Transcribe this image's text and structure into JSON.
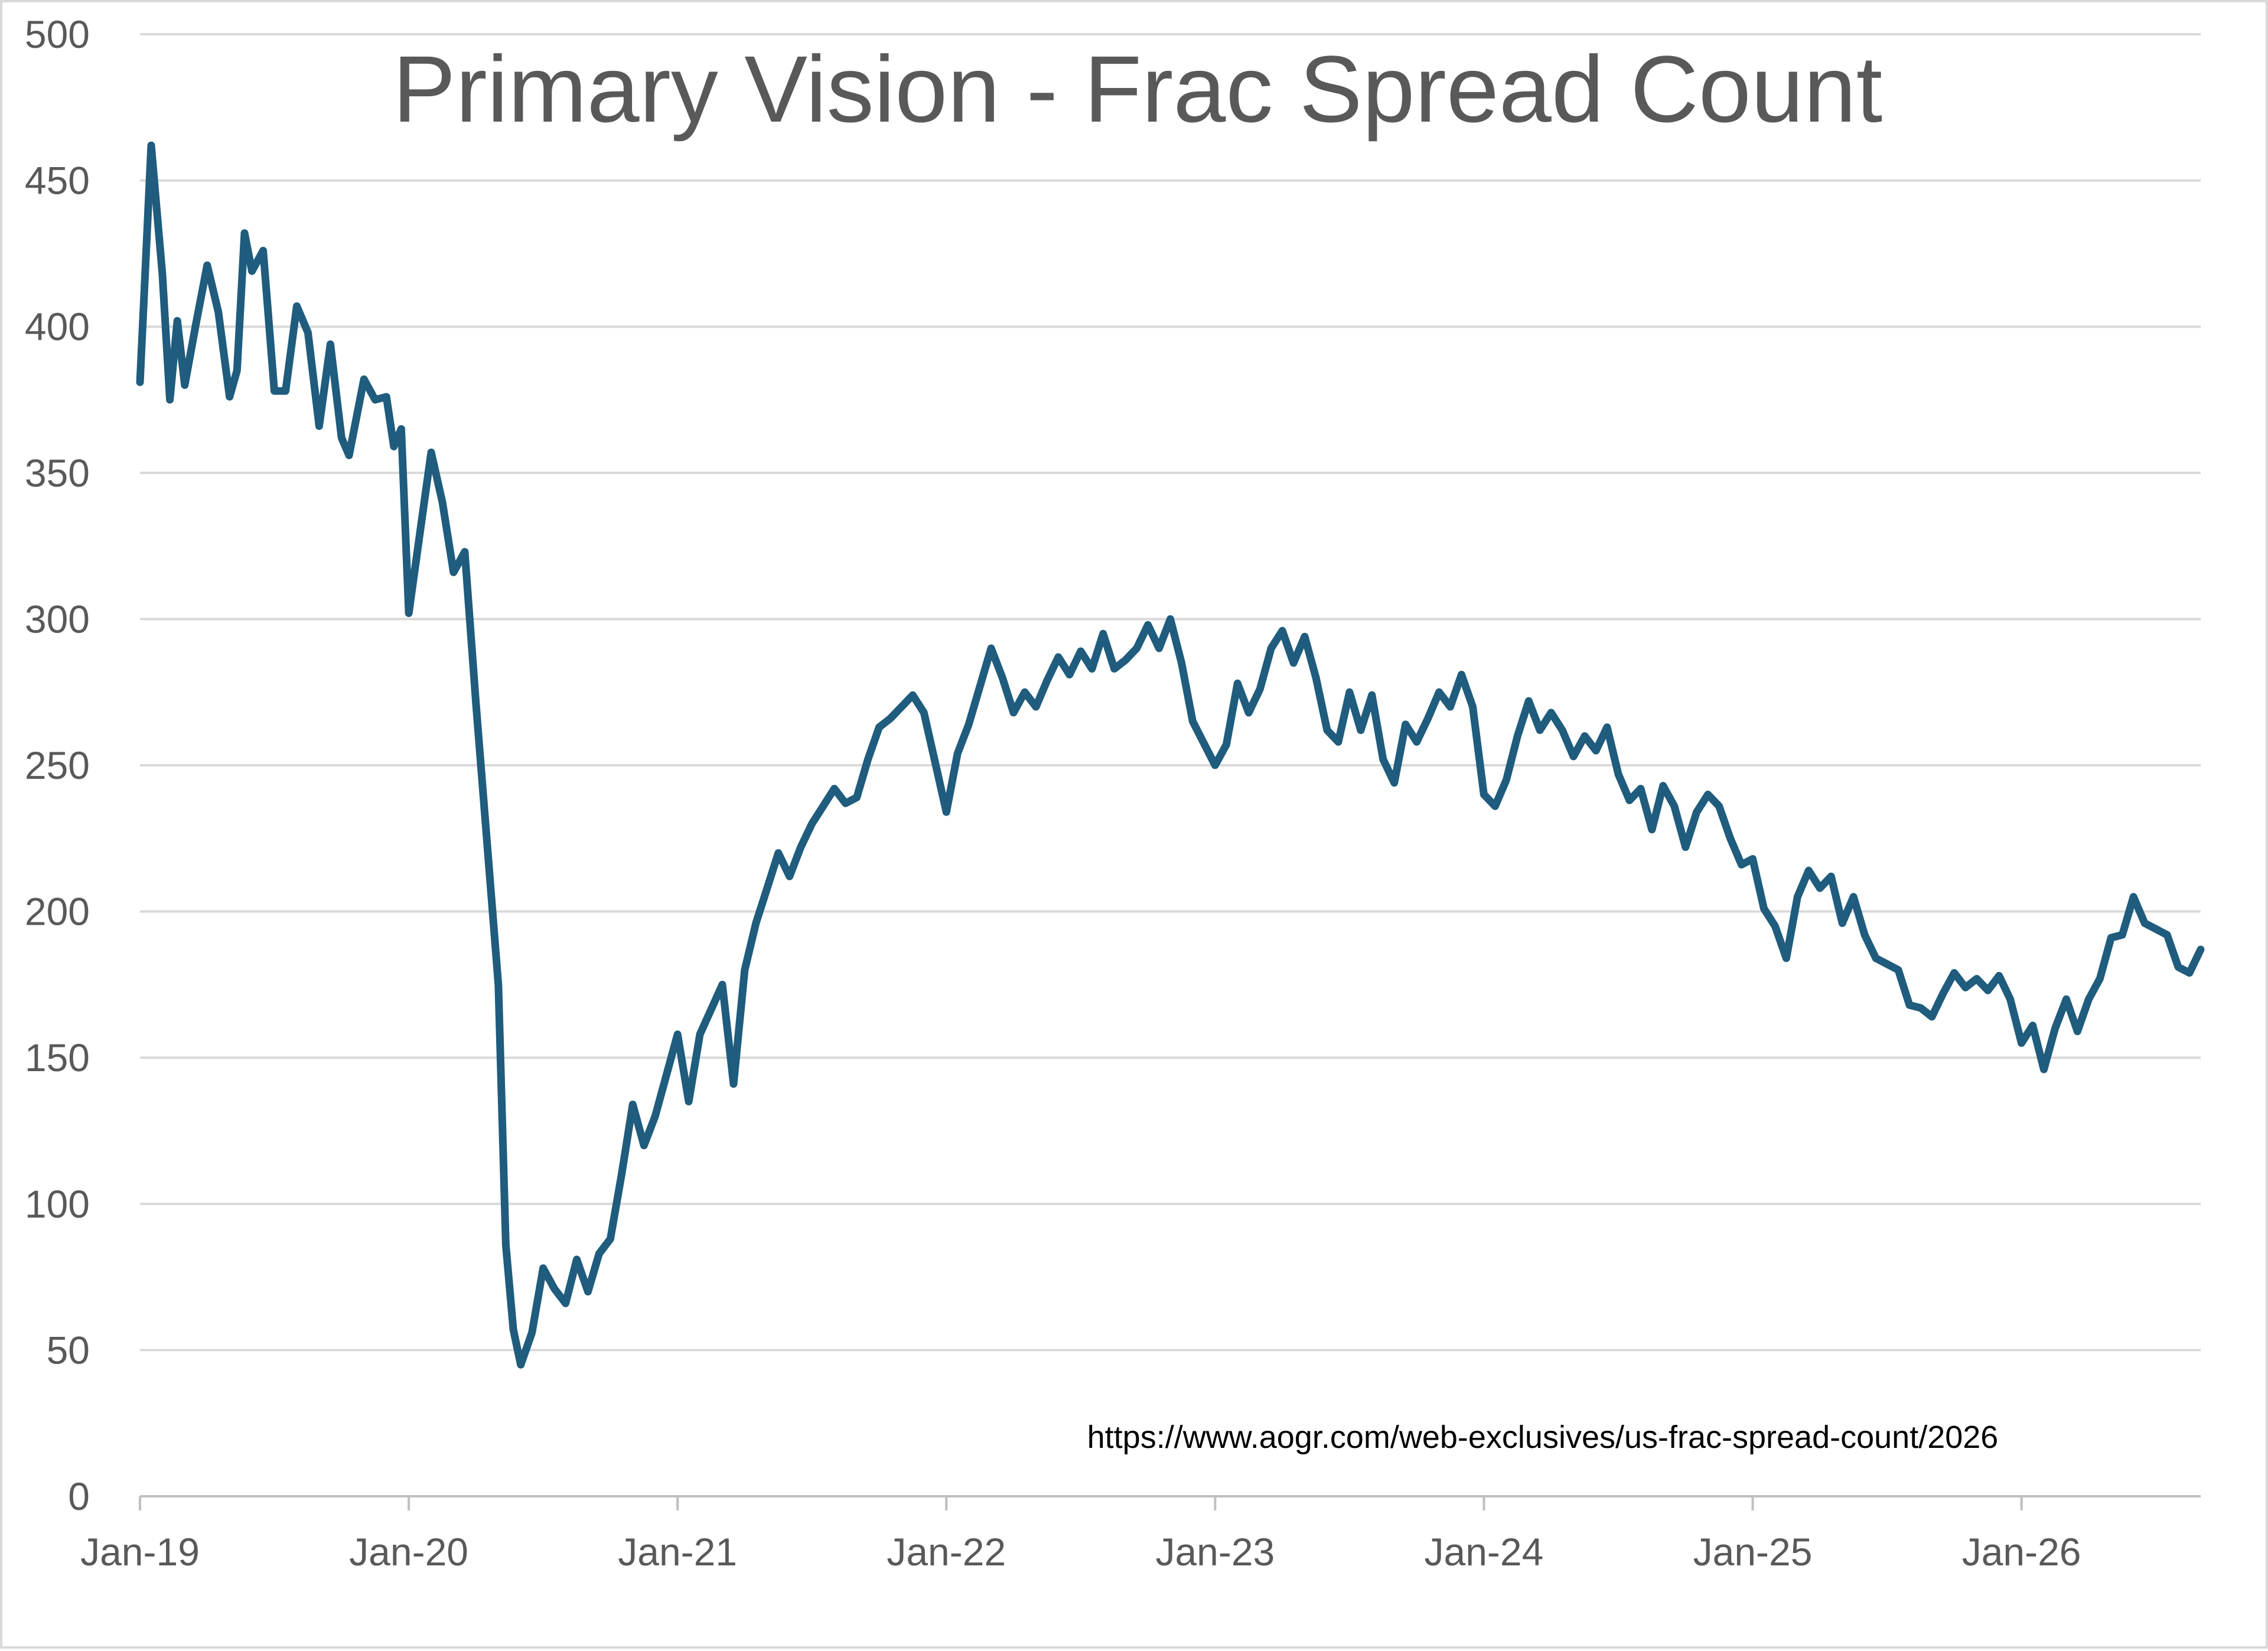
{
  "chart_data": {
    "type": "line",
    "title": "Primary Vision - Frac Spread Count",
    "annotation": "https://www.aogr.com/web-exclusives/us-frac-spread-count/2026",
    "xlabel": "",
    "ylabel": "",
    "ylim": [
      0,
      500
    ],
    "y_ticks": [
      0,
      50,
      100,
      150,
      200,
      250,
      300,
      350,
      400,
      450,
      500
    ],
    "x_range": [
      "2019-01",
      "2026-09"
    ],
    "x_tick_labels": [
      "Jan-19",
      "Jan-20",
      "Jan-21",
      "Jan-22",
      "Jan-23",
      "Jan-24",
      "Jan-25",
      "Jan-26"
    ],
    "grid": true,
    "legend": "none",
    "colors": {
      "line": "#1f5c7d",
      "grid": "#d9d9d9",
      "axis": "#bfbfbf",
      "text": "#595959"
    },
    "series": [
      {
        "color": "#1f5c7d",
        "points": [
          [
            "2019-01",
            381
          ],
          [
            "2019-01",
            462
          ],
          [
            "2019-02",
            418
          ],
          [
            "2019-02",
            375
          ],
          [
            "2019-02",
            402
          ],
          [
            "2019-03",
            380
          ],
          [
            "2019-03",
            401
          ],
          [
            "2019-04",
            421
          ],
          [
            "2019-04",
            405
          ],
          [
            "2019-05",
            376
          ],
          [
            "2019-05",
            385
          ],
          [
            "2019-05",
            432
          ],
          [
            "2019-06",
            419
          ],
          [
            "2019-06",
            426
          ],
          [
            "2019-07",
            378
          ],
          [
            "2019-07",
            378
          ],
          [
            "2019-08",
            407
          ],
          [
            "2019-08",
            398
          ],
          [
            "2019-09",
            366
          ],
          [
            "2019-09",
            394
          ],
          [
            "2019-10",
            362
          ],
          [
            "2019-10",
            356
          ],
          [
            "2019-10",
            369
          ],
          [
            "2019-11",
            382
          ],
          [
            "2019-11",
            375
          ],
          [
            "2019-12",
            376
          ],
          [
            "2019-12",
            359
          ],
          [
            "2019-12",
            365
          ],
          [
            "2020-01",
            302
          ],
          [
            "2020-02",
            357
          ],
          [
            "2020-02",
            340
          ],
          [
            "2020-03",
            316
          ],
          [
            "2020-03",
            323
          ],
          [
            "2020-04",
            271
          ],
          [
            "2020-05",
            175
          ],
          [
            "2020-05",
            86
          ],
          [
            "2020-05",
            57
          ],
          [
            "2020-06",
            45
          ],
          [
            "2020-06",
            56
          ],
          [
            "2020-07",
            78
          ],
          [
            "2020-07",
            71
          ],
          [
            "2020-08",
            66
          ],
          [
            "2020-08",
            81
          ],
          [
            "2020-09",
            70
          ],
          [
            "2020-09",
            83
          ],
          [
            "2020-10",
            88
          ],
          [
            "2020-10",
            110
          ],
          [
            "2020-11",
            134
          ],
          [
            "2020-11",
            120
          ],
          [
            "2020-12",
            130
          ],
          [
            "2021-01",
            158
          ],
          [
            "2021-01",
            135
          ],
          [
            "2021-02",
            158
          ],
          [
            "2021-03",
            175
          ],
          [
            "2021-03",
            141
          ],
          [
            "2021-04",
            180
          ],
          [
            "2021-04",
            196
          ],
          [
            "2021-05",
            208
          ],
          [
            "2021-05",
            220
          ],
          [
            "2021-06",
            212
          ],
          [
            "2021-06",
            222
          ],
          [
            "2021-07",
            230
          ],
          [
            "2021-07",
            236
          ],
          [
            "2021-08",
            242
          ],
          [
            "2021-08",
            237
          ],
          [
            "2021-09",
            239
          ],
          [
            "2021-09",
            252
          ],
          [
            "2021-10",
            263
          ],
          [
            "2021-10",
            266
          ],
          [
            "2021-11",
            270
          ],
          [
            "2021-11",
            274
          ],
          [
            "2021-12",
            268
          ],
          [
            "2022-01",
            234
          ],
          [
            "2022-01",
            254
          ],
          [
            "2022-02",
            264
          ],
          [
            "2022-03",
            290
          ],
          [
            "2022-03",
            280
          ],
          [
            "2022-04",
            268
          ],
          [
            "2022-04",
            275
          ],
          [
            "2022-05",
            270
          ],
          [
            "2022-05",
            279
          ],
          [
            "2022-06",
            287
          ],
          [
            "2022-06",
            281
          ],
          [
            "2022-07",
            289
          ],
          [
            "2022-07",
            283
          ],
          [
            "2022-08",
            295
          ],
          [
            "2022-08",
            283
          ],
          [
            "2022-09",
            286
          ],
          [
            "2022-09",
            290
          ],
          [
            "2022-10",
            298
          ],
          [
            "2022-10",
            290
          ],
          [
            "2022-11",
            300
          ],
          [
            "2022-11",
            285
          ],
          [
            "2022-12",
            265
          ],
          [
            "2023-01",
            250
          ],
          [
            "2023-01",
            257
          ],
          [
            "2023-02",
            278
          ],
          [
            "2023-02",
            268
          ],
          [
            "2023-03",
            276
          ],
          [
            "2023-03",
            290
          ],
          [
            "2023-04",
            296
          ],
          [
            "2023-04",
            285
          ],
          [
            "2023-05",
            294
          ],
          [
            "2023-05",
            280
          ],
          [
            "2023-06",
            262
          ],
          [
            "2023-06",
            258
          ],
          [
            "2023-07",
            275
          ],
          [
            "2023-07",
            262
          ],
          [
            "2023-08",
            274
          ],
          [
            "2023-08",
            252
          ],
          [
            "2023-09",
            244
          ],
          [
            "2023-09",
            264
          ],
          [
            "2023-10",
            258
          ],
          [
            "2023-10",
            266
          ],
          [
            "2023-11",
            275
          ],
          [
            "2023-11",
            270
          ],
          [
            "2023-12",
            281
          ],
          [
            "2023-12",
            270
          ],
          [
            "2024-01",
            240
          ],
          [
            "2024-01",
            236
          ],
          [
            "2024-02",
            245
          ],
          [
            "2024-02",
            260
          ],
          [
            "2024-03",
            272
          ],
          [
            "2024-03",
            262
          ],
          [
            "2024-04",
            268
          ],
          [
            "2024-04",
            262
          ],
          [
            "2024-05",
            253
          ],
          [
            "2024-05",
            260
          ],
          [
            "2024-06",
            255
          ],
          [
            "2024-06",
            263
          ],
          [
            "2024-07",
            247
          ],
          [
            "2024-07",
            238
          ],
          [
            "2024-08",
            242
          ],
          [
            "2024-08",
            228
          ],
          [
            "2024-09",
            243
          ],
          [
            "2024-09",
            236
          ],
          [
            "2024-10",
            222
          ],
          [
            "2024-10",
            234
          ],
          [
            "2024-11",
            240
          ],
          [
            "2024-11",
            236
          ],
          [
            "2024-12",
            225
          ],
          [
            "2024-12",
            216
          ],
          [
            "2025-01",
            218
          ],
          [
            "2025-01",
            201
          ],
          [
            "2025-02",
            195
          ],
          [
            "2025-02",
            184
          ],
          [
            "2025-03",
            205
          ],
          [
            "2025-03",
            214
          ],
          [
            "2025-04",
            208
          ],
          [
            "2025-04",
            212
          ],
          [
            "2025-05",
            196
          ],
          [
            "2025-05",
            205
          ],
          [
            "2025-06",
            192
          ],
          [
            "2025-06",
            184
          ],
          [
            "2025-07",
            182
          ],
          [
            "2025-07",
            180
          ],
          [
            "2025-08",
            168
          ],
          [
            "2025-08",
            167
          ],
          [
            "2025-09",
            164
          ],
          [
            "2025-09",
            172
          ],
          [
            "2025-10",
            179
          ],
          [
            "2025-10",
            174
          ],
          [
            "2025-11",
            177
          ],
          [
            "2025-11",
            173
          ],
          [
            "2025-12",
            178
          ],
          [
            "2025-12",
            170
          ],
          [
            "2026-01",
            155
          ],
          [
            "2026-01",
            161
          ],
          [
            "2026-02",
            146
          ],
          [
            "2026-02",
            160
          ],
          [
            "2026-03",
            170
          ],
          [
            "2026-03",
            159
          ],
          [
            "2026-04",
            170
          ],
          [
            "2026-04",
            177
          ],
          [
            "2026-05",
            191
          ],
          [
            "2026-05",
            192
          ],
          [
            "2026-06",
            205
          ],
          [
            "2026-06",
            196
          ],
          [
            "2026-07",
            194
          ],
          [
            "2026-07",
            192
          ],
          [
            "2026-08",
            181
          ],
          [
            "2026-08",
            179
          ],
          [
            "2026-09",
            187
          ]
        ]
      }
    ]
  }
}
